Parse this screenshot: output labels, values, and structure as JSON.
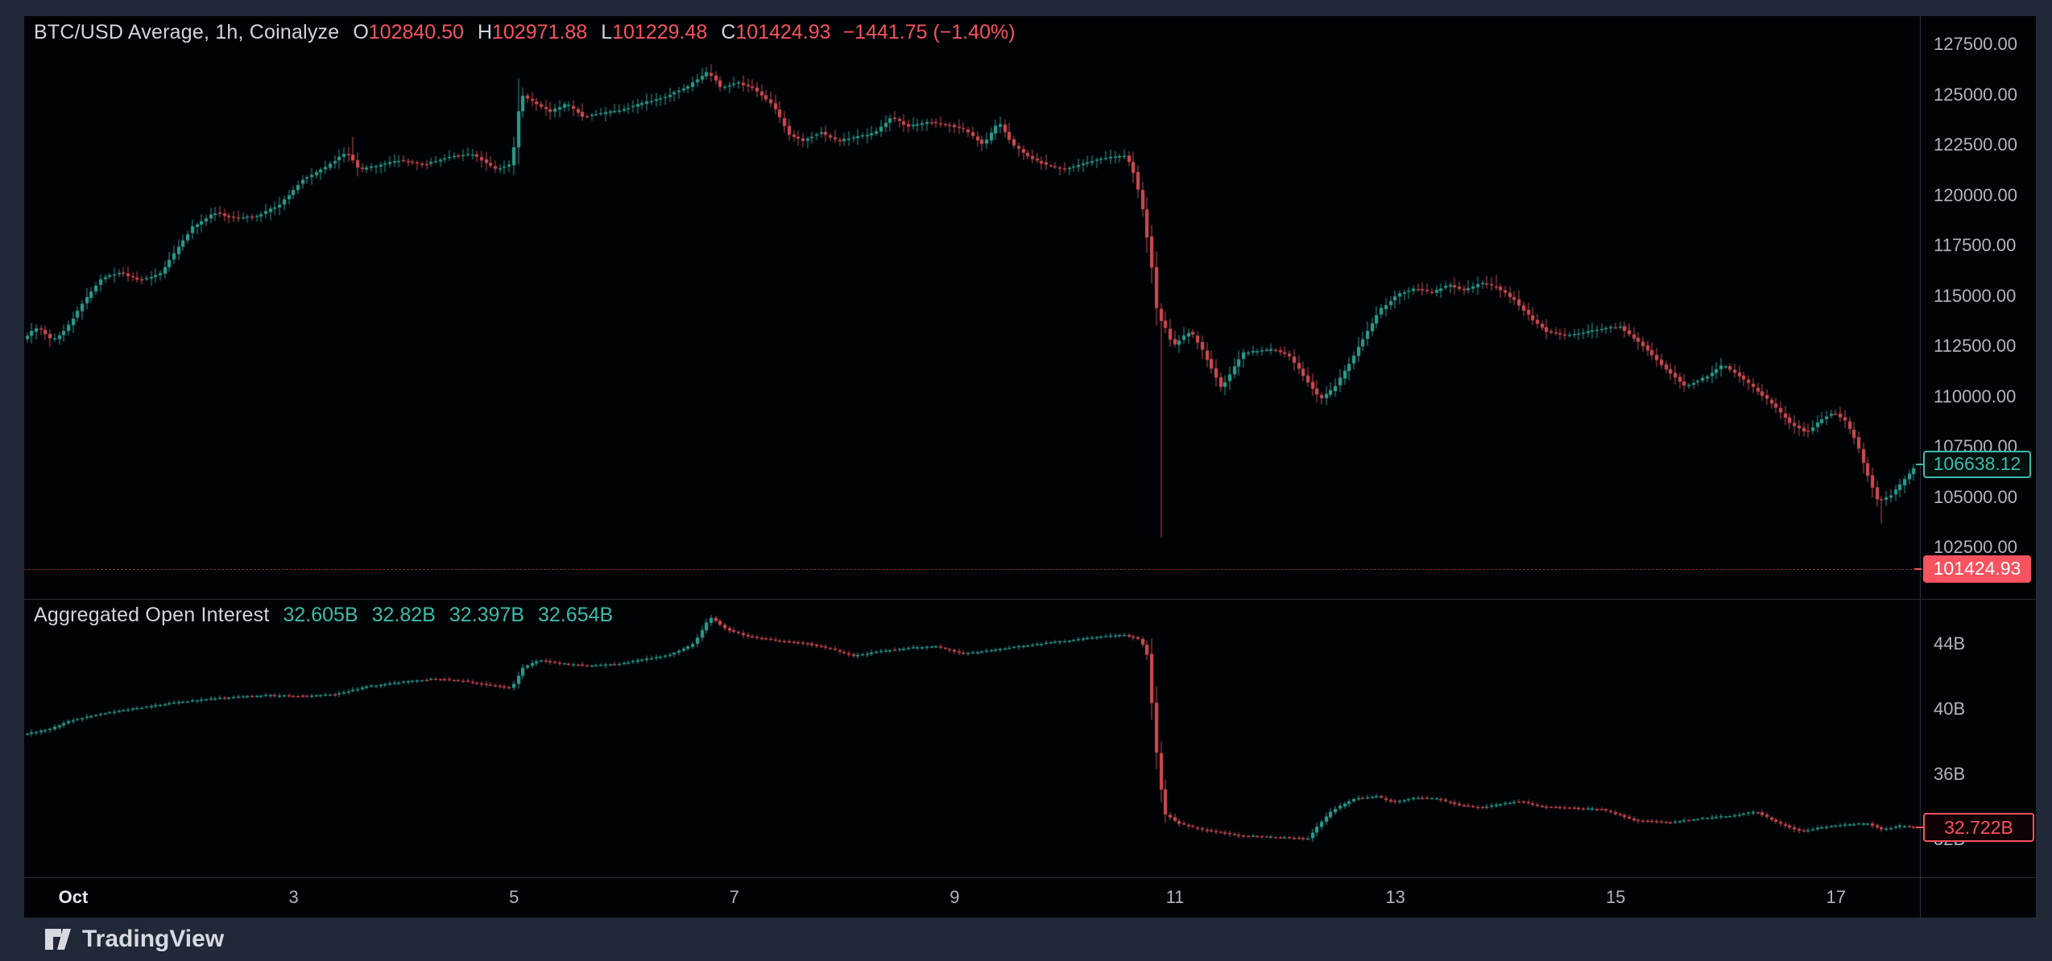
{
  "header": {
    "symbol_title": "BTC/USD Average, 1h, Coinalyze",
    "ohlc": {
      "o_label": "O",
      "o": "102840.50",
      "h_label": "H",
      "h": "102971.88",
      "l_label": "L",
      "l": "101229.48",
      "c_label": "C",
      "c": "101424.93",
      "change": "−1441.75 (−1.40%)"
    }
  },
  "indicator": {
    "title": "Aggregated Open Interest",
    "values": [
      "32.605B",
      "32.82B",
      "32.397B",
      "32.654B"
    ]
  },
  "price_axis": {
    "ticks": [
      {
        "label": "127500.00",
        "value": 127500
      },
      {
        "label": "125000.00",
        "value": 125000
      },
      {
        "label": "122500.00",
        "value": 122500
      },
      {
        "label": "120000.00",
        "value": 120000
      },
      {
        "label": "117500.00",
        "value": 117500
      },
      {
        "label": "115000.00",
        "value": 115000
      },
      {
        "label": "112500.00",
        "value": 112500
      },
      {
        "label": "110000.00",
        "value": 110000
      },
      {
        "label": "107500.00",
        "value": 107500
      },
      {
        "label": "105000.00",
        "value": 105000
      },
      {
        "label": "102500.00",
        "value": 102500
      }
    ],
    "last_badge": {
      "label": "106638.12",
      "value": 106638.12
    },
    "current_badge": {
      "label": "101424.93",
      "value": 101424.93
    }
  },
  "oi_axis": {
    "ticks": [
      {
        "label": "44B",
        "value": 44
      },
      {
        "label": "40B",
        "value": 40
      },
      {
        "label": "36B",
        "value": 36
      },
      {
        "label": "32B",
        "value": 32
      }
    ],
    "badge": {
      "label": "32.722B",
      "value": 32.722
    }
  },
  "time_axis": {
    "ticks": [
      {
        "label": "Oct",
        "day": 1,
        "emphasis": true
      },
      {
        "label": "3",
        "day": 3
      },
      {
        "label": "5",
        "day": 5
      },
      {
        "label": "7",
        "day": 7
      },
      {
        "label": "9",
        "day": 9
      },
      {
        "label": "11",
        "day": 11
      },
      {
        "label": "13",
        "day": 13
      },
      {
        "label": "15",
        "day": 15
      },
      {
        "label": "17",
        "day": 17
      }
    ]
  },
  "footer": {
    "brand": "TradingView"
  },
  "colors": {
    "page_bg": "#212838",
    "chart_bg": "#000306",
    "border": "#2a2e39",
    "candle_up": "#2a9d8f",
    "candle_down": "#cc4a51",
    "text_primary": "#d1d4dc",
    "text_secondary": "#b2b5be",
    "teal_text": "#3bbcab",
    "red_text": "#f7525f"
  },
  "chart_data": [
    {
      "id": "price",
      "type": "candlestick",
      "title": "BTC/USD Average, 1h, Coinalyze",
      "timeframe": "1h",
      "x_unit": "day of October (fractional)",
      "visible_range_days": [
        0.56,
        17.76
      ],
      "ylim": [
        99940,
        128900
      ],
      "y_ticks": [
        127500,
        125000,
        122500,
        120000,
        117500,
        115000,
        112500,
        110000,
        107500,
        105000,
        102500
      ],
      "last_close": 106638.12,
      "current_price": 101424.93,
      "last_bar_ohlc": {
        "open": 102840.5,
        "high": 102971.88,
        "low": 101229.48,
        "close": 101424.93,
        "change": -1441.75,
        "change_pct": -1.4
      },
      "sampled_path_anchors": [
        [
          0.56,
          112850
        ],
        [
          0.7,
          113480
        ],
        [
          0.83,
          112760
        ],
        [
          0.95,
          113300
        ],
        [
          1.1,
          114600
        ],
        [
          1.28,
          115900
        ],
        [
          1.45,
          116150
        ],
        [
          1.62,
          115750
        ],
        [
          1.8,
          116050
        ],
        [
          1.95,
          117200
        ],
        [
          2.1,
          118420
        ],
        [
          2.3,
          119120
        ],
        [
          2.5,
          118850
        ],
        [
          2.7,
          118980
        ],
        [
          2.9,
          119560
        ],
        [
          3.1,
          120780
        ],
        [
          3.3,
          121350
        ],
        [
          3.5,
          122150
        ],
        [
          3.62,
          121250
        ],
        [
          3.8,
          121500
        ],
        [
          4.0,
          121750
        ],
        [
          4.2,
          121500
        ],
        [
          4.45,
          121950
        ],
        [
          4.65,
          122050
        ],
        [
          4.85,
          121280
        ],
        [
          5.0,
          121550
        ],
        [
          5.08,
          125050
        ],
        [
          5.2,
          124600
        ],
        [
          5.35,
          124150
        ],
        [
          5.5,
          124550
        ],
        [
          5.65,
          123900
        ],
        [
          5.8,
          124050
        ],
        [
          6.0,
          124250
        ],
        [
          6.2,
          124600
        ],
        [
          6.4,
          124900
        ],
        [
          6.6,
          125400
        ],
        [
          6.78,
          126150
        ],
        [
          6.9,
          125350
        ],
        [
          7.05,
          125600
        ],
        [
          7.2,
          125300
        ],
        [
          7.38,
          124400
        ],
        [
          7.52,
          123000
        ],
        [
          7.65,
          122700
        ],
        [
          7.8,
          123150
        ],
        [
          7.95,
          122700
        ],
        [
          8.1,
          122850
        ],
        [
          8.3,
          123100
        ],
        [
          8.45,
          123900
        ],
        [
          8.6,
          123400
        ],
        [
          8.78,
          123650
        ],
        [
          8.95,
          123500
        ],
        [
          9.1,
          123300
        ],
        [
          9.28,
          122500
        ],
        [
          9.42,
          123650
        ],
        [
          9.55,
          122500
        ],
        [
          9.7,
          121900
        ],
        [
          9.85,
          121500
        ],
        [
          10.0,
          121300
        ],
        [
          10.15,
          121500
        ],
        [
          10.3,
          121750
        ],
        [
          10.45,
          121900
        ],
        [
          10.58,
          121950
        ],
        [
          10.66,
          120900
        ],
        [
          10.73,
          119200
        ],
        [
          10.79,
          117200
        ],
        [
          10.83,
          115600
        ],
        [
          10.86,
          113900
        ],
        [
          10.92,
          113600
        ],
        [
          11.0,
          112500
        ],
        [
          11.08,
          112900
        ],
        [
          11.16,
          113250
        ],
        [
          11.25,
          112500
        ],
        [
          11.35,
          111400
        ],
        [
          11.44,
          110400
        ],
        [
          11.54,
          111300
        ],
        [
          11.64,
          112200
        ],
        [
          11.78,
          112250
        ],
        [
          11.92,
          112350
        ],
        [
          12.06,
          112000
        ],
        [
          12.2,
          110900
        ],
        [
          12.34,
          109850
        ],
        [
          12.46,
          110400
        ],
        [
          12.6,
          111600
        ],
        [
          12.74,
          113000
        ],
        [
          12.88,
          114300
        ],
        [
          13.05,
          115100
        ],
        [
          13.2,
          115350
        ],
        [
          13.35,
          115150
        ],
        [
          13.5,
          115550
        ],
        [
          13.65,
          115250
        ],
        [
          13.8,
          115650
        ],
        [
          13.95,
          115400
        ],
        [
          14.1,
          114800
        ],
        [
          14.25,
          113900
        ],
        [
          14.4,
          113200
        ],
        [
          14.55,
          113050
        ],
        [
          14.7,
          113150
        ],
        [
          14.85,
          113300
        ],
        [
          15.05,
          113500
        ],
        [
          15.25,
          112600
        ],
        [
          15.45,
          111500
        ],
        [
          15.65,
          110500
        ],
        [
          15.85,
          111000
        ],
        [
          16.0,
          111600
        ],
        [
          16.15,
          111000
        ],
        [
          16.3,
          110300
        ],
        [
          16.45,
          109600
        ],
        [
          16.6,
          108700
        ],
        [
          16.75,
          108200
        ],
        [
          16.9,
          108900
        ],
        [
          17.0,
          109200
        ],
        [
          17.1,
          108800
        ],
        [
          17.2,
          107800
        ],
        [
          17.3,
          106200
        ],
        [
          17.4,
          104800
        ],
        [
          17.5,
          105000
        ],
        [
          17.6,
          105600
        ],
        [
          17.68,
          106100
        ],
        [
          17.76,
          106638.12
        ]
      ],
      "special_wicks": {
        "highs": [
          [
            3.52,
            122900
          ],
          [
            5.06,
            125800
          ],
          [
            6.78,
            126500
          ],
          [
            9.43,
            123900
          ],
          [
            13.9,
            116050
          ]
        ],
        "lows": [
          [
            10.87,
            102980
          ],
          [
            11.44,
            110050
          ],
          [
            17.42,
            103680
          ]
        ]
      }
    },
    {
      "id": "open_interest",
      "type": "candlestick",
      "title": "Aggregated Open Interest",
      "unit": "billions USD",
      "x_unit": "day of October (fractional)",
      "visible_range_days": [
        0.56,
        17.76
      ],
      "ylim": [
        29.68,
        46.77
      ],
      "y_ticks": [
        44,
        40,
        36,
        32
      ],
      "last_values": {
        "open": 32.605,
        "high": 32.82,
        "low": 32.397,
        "close": 32.654
      },
      "current_value": 32.722,
      "sampled_path_anchors": [
        [
          0.56,
          38.45
        ],
        [
          0.8,
          38.75
        ],
        [
          1.0,
          39.3
        ],
        [
          1.3,
          39.75
        ],
        [
          1.6,
          40.05
        ],
        [
          1.9,
          40.35
        ],
        [
          2.2,
          40.6
        ],
        [
          2.5,
          40.75
        ],
        [
          2.8,
          40.85
        ],
        [
          3.1,
          40.8
        ],
        [
          3.4,
          40.9
        ],
        [
          3.7,
          41.4
        ],
        [
          4.0,
          41.65
        ],
        [
          4.3,
          41.85
        ],
        [
          4.55,
          41.75
        ],
        [
          4.8,
          41.45
        ],
        [
          5.0,
          41.3
        ],
        [
          5.1,
          42.55
        ],
        [
          5.25,
          43.0
        ],
        [
          5.45,
          42.8
        ],
        [
          5.7,
          42.65
        ],
        [
          5.95,
          42.75
        ],
        [
          6.2,
          43.05
        ],
        [
          6.45,
          43.35
        ],
        [
          6.65,
          44.0
        ],
        [
          6.8,
          45.65
        ],
        [
          6.95,
          44.9
        ],
        [
          7.15,
          44.45
        ],
        [
          7.4,
          44.2
        ],
        [
          7.65,
          44.05
        ],
        [
          7.9,
          43.7
        ],
        [
          8.1,
          43.25
        ],
        [
          8.35,
          43.55
        ],
        [
          8.6,
          43.75
        ],
        [
          8.85,
          43.85
        ],
        [
          9.1,
          43.4
        ],
        [
          9.35,
          43.6
        ],
        [
          9.6,
          43.85
        ],
        [
          9.85,
          44.05
        ],
        [
          10.1,
          44.25
        ],
        [
          10.35,
          44.45
        ],
        [
          10.55,
          44.55
        ],
        [
          10.7,
          44.3
        ],
        [
          10.78,
          43.2
        ],
        [
          10.83,
          38.5
        ],
        [
          10.92,
          33.6
        ],
        [
          11.05,
          33.0
        ],
        [
          11.3,
          32.55
        ],
        [
          11.6,
          32.25
        ],
        [
          11.9,
          32.15
        ],
        [
          12.1,
          32.1
        ],
        [
          12.22,
          32.0
        ],
        [
          12.3,
          32.7
        ],
        [
          12.45,
          33.8
        ],
        [
          12.65,
          34.5
        ],
        [
          12.85,
          34.65
        ],
        [
          13.0,
          34.3
        ],
        [
          13.2,
          34.55
        ],
        [
          13.4,
          34.5
        ],
        [
          13.6,
          34.1
        ],
        [
          13.8,
          33.95
        ],
        [
          14.0,
          34.2
        ],
        [
          14.15,
          34.35
        ],
        [
          14.35,
          34.0
        ],
        [
          14.6,
          33.95
        ],
        [
          14.9,
          33.85
        ],
        [
          15.2,
          33.15
        ],
        [
          15.5,
          33.05
        ],
        [
          15.8,
          33.3
        ],
        [
          16.05,
          33.45
        ],
        [
          16.3,
          33.7
        ],
        [
          16.5,
          33.0
        ],
        [
          16.7,
          32.5
        ],
        [
          16.9,
          32.75
        ],
        [
          17.1,
          32.9
        ],
        [
          17.3,
          33.0
        ],
        [
          17.45,
          32.6
        ],
        [
          17.6,
          32.85
        ],
        [
          17.76,
          32.722
        ]
      ],
      "special_wicks": {
        "highs": [],
        "lows": []
      }
    }
  ]
}
